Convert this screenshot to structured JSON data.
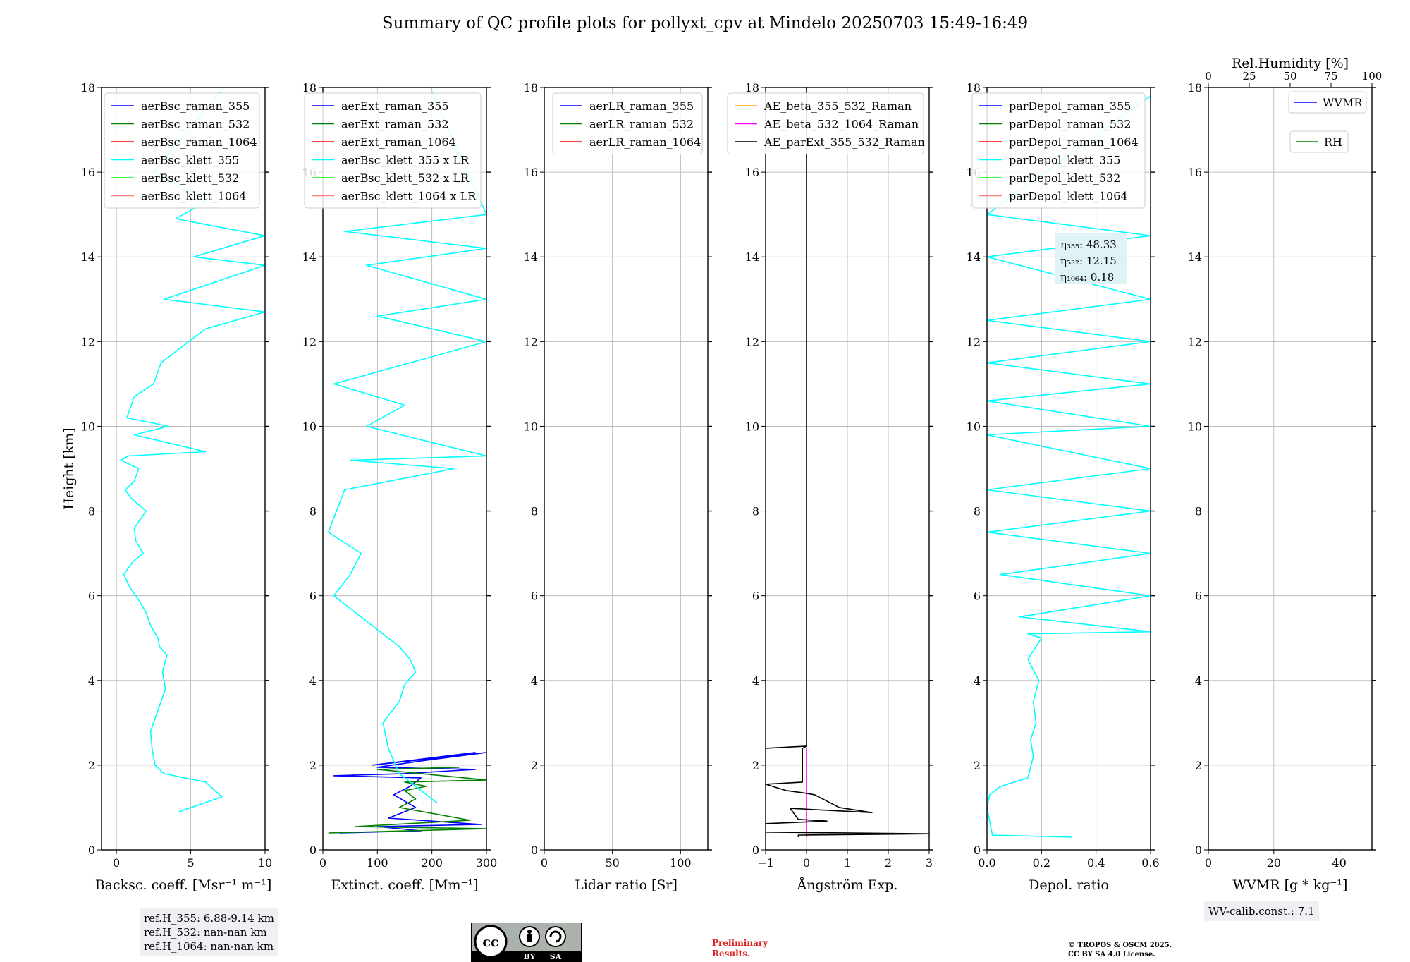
{
  "title": "Summary of QC profile plots for pollyxt_cpv at Mindelo 20250703 15:49-16:49",
  "height_axis_label": "Height [km]",
  "ref_heights": [
    "ref.H_355: 6.88-9.14 km",
    "ref.H_532: nan-nan km",
    "ref.H_1064: nan-nan km"
  ],
  "wv_calib": "WV-calib.const.: 7.1",
  "preliminary": [
    "Preliminary",
    "Results."
  ],
  "copyright": [
    "© TROPOS & OSCM 2025.",
    "CC BY SA 4.0 License."
  ],
  "license_badge": {
    "cc": "cc",
    "by": "BY",
    "sa": "SA"
  },
  "eta_labels": [
    {
      "label": "η₃₅₅: 48.33"
    },
    {
      "label": "η₅₃₂: 12.15"
    },
    {
      "label": "η₁₀₆₄: 0.18"
    }
  ],
  "rh_axis": {
    "label": "Rel.Humidity [%]",
    "ticks": [
      "0",
      "25",
      "50",
      "75",
      "100"
    ]
  },
  "chart_data": [
    {
      "type": "line",
      "xlabel": "Backsc. coeff. [Msr⁻¹ m⁻¹]",
      "ylabel": "Height [km]",
      "xlim": [
        -1,
        10
      ],
      "ylim": [
        0,
        18
      ],
      "xticks": [
        0,
        5,
        10
      ],
      "yticks": [
        0,
        2,
        4,
        6,
        8,
        10,
        12,
        14,
        16,
        18
      ],
      "grid": true,
      "legend": "top-right",
      "series": [
        {
          "name": "aerBsc_raman_355",
          "color": "#0000ff",
          "x": [],
          "y": []
        },
        {
          "name": "aerBsc_raman_532",
          "color": "#008000",
          "x": [],
          "y": []
        },
        {
          "name": "aerBsc_raman_1064",
          "color": "#ff0000",
          "x": [],
          "y": []
        },
        {
          "name": "aerBsc_klett_355",
          "color": "#00ffff",
          "x": [
            4.2,
            7.1,
            6.0,
            3.2,
            2.6,
            2.4,
            2.3,
            2.6,
            3.0,
            3.3,
            3.1,
            3.4,
            2.9,
            2.8,
            2.3,
            2.0,
            1.5,
            0.9,
            0.5,
            1.1,
            1.8,
            1.3,
            1.2,
            2.0,
            1.0,
            0.6,
            1.2,
            1.5,
            0.3,
            0.8,
            6.0,
            1.2,
            3.5,
            0.7,
            1.2,
            2.5,
            3.0,
            4.5,
            6.0,
            8.0,
            10.0,
            3.2,
            10.0,
            5.2,
            10.0,
            4.0,
            6.0,
            2.5,
            7.0
          ],
          "y": [
            0.9,
            1.25,
            1.6,
            1.8,
            2.0,
            2.4,
            2.8,
            3.1,
            3.5,
            3.8,
            4.2,
            4.6,
            4.8,
            5.0,
            5.3,
            5.6,
            5.9,
            6.2,
            6.5,
            6.8,
            7.0,
            7.3,
            7.6,
            8.0,
            8.3,
            8.5,
            8.7,
            9.0,
            9.2,
            9.3,
            9.4,
            9.8,
            10.0,
            10.2,
            10.7,
            11.0,
            11.5,
            11.9,
            12.3,
            12.5,
            12.7,
            13.0,
            13.8,
            14.0,
            14.5,
            14.9,
            15.3,
            16.0,
            17.9
          ]
        },
        {
          "name": "aerBsc_klett_532",
          "color": "#00ff00",
          "x": [],
          "y": []
        },
        {
          "name": "aerBsc_klett_1064",
          "color": "#ff7f7f",
          "x": [],
          "y": []
        }
      ]
    },
    {
      "type": "line",
      "xlabel": "Extinct. coeff. [Mm⁻¹]",
      "xlim": [
        0,
        300
      ],
      "ylim": [
        0,
        18
      ],
      "xticks": [
        0,
        100,
        200,
        300
      ],
      "yticks": [
        0,
        2,
        4,
        6,
        8,
        10,
        12,
        14,
        16,
        18
      ],
      "grid": true,
      "legend": "top-right",
      "series": [
        {
          "name": "aerExt_raman_355",
          "color": "#0000ff",
          "x": [
            30,
            180,
            100,
            290,
            120,
            170,
            130,
            160,
            180,
            20,
            150,
            280,
            100,
            180,
            300,
            90,
            280
          ],
          "y": [
            0.4,
            0.45,
            0.55,
            0.6,
            0.75,
            1.0,
            1.3,
            1.5,
            1.7,
            1.75,
            1.8,
            1.9,
            1.95,
            2.1,
            2.3,
            2.0,
            2.3
          ]
        },
        {
          "name": "aerExt_raman_532",
          "color": "#008000",
          "x": [
            10,
            300,
            60,
            270,
            140,
            170,
            150,
            190,
            150,
            300,
            100,
            250
          ],
          "y": [
            0.4,
            0.5,
            0.55,
            0.7,
            1.0,
            1.2,
            1.4,
            1.5,
            1.6,
            1.65,
            1.9,
            1.95
          ]
        },
        {
          "name": "aerExt_raman_1064",
          "color": "#ff0000",
          "x": [],
          "y": []
        },
        {
          "name": "aerBsc_klett_355 x LR",
          "color": "#00ffff",
          "x": [
            210,
            160,
            140,
            120,
            110,
            140,
            150,
            170,
            160,
            140,
            100,
            60,
            20,
            50,
            70,
            10,
            40,
            240,
            50,
            300,
            80,
            150,
            20,
            300,
            100,
            300,
            80,
            300,
            40,
            300,
            200
          ],
          "y": [
            1.1,
            1.6,
            1.8,
            2.4,
            3.0,
            3.5,
            3.9,
            4.2,
            4.5,
            4.8,
            5.2,
            5.6,
            6.0,
            6.5,
            7.0,
            7.5,
            8.5,
            9.0,
            9.2,
            9.3,
            10.0,
            10.5,
            11.0,
            12.0,
            12.6,
            13.0,
            13.8,
            14.2,
            14.6,
            15.0,
            17.9
          ]
        },
        {
          "name": "aerBsc_klett_532 x LR",
          "color": "#00ff00",
          "x": [],
          "y": []
        },
        {
          "name": "aerBsc_klett_1064 x LR",
          "color": "#ff7f7f",
          "x": [],
          "y": []
        }
      ]
    },
    {
      "type": "line",
      "xlabel": "Lidar ratio [Sr]",
      "xlim": [
        0,
        120
      ],
      "ylim": [
        0,
        18
      ],
      "xticks": [
        0,
        50,
        100
      ],
      "yticks": [
        0,
        2,
        4,
        6,
        8,
        10,
        12,
        14,
        16,
        18
      ],
      "grid": true,
      "legend": "top-right",
      "series": [
        {
          "name": "aerLR_raman_355",
          "color": "#0000ff",
          "x": [],
          "y": []
        },
        {
          "name": "aerLR_raman_532",
          "color": "#008000",
          "x": [],
          "y": []
        },
        {
          "name": "aerLR_raman_1064",
          "color": "#ff0000",
          "x": [],
          "y": []
        }
      ]
    },
    {
      "type": "line",
      "xlabel": "Ångström Exp.",
      "xlim": [
        -1,
        3
      ],
      "ylim": [
        0,
        18
      ],
      "xticks": [
        -1,
        0,
        1,
        2,
        3
      ],
      "xticklabels": [
        "−1",
        "0",
        "1",
        "2",
        "3"
      ],
      "yticks": [
        0,
        2,
        4,
        6,
        8,
        10,
        12,
        14,
        16,
        18
      ],
      "grid": true,
      "legend": "top-right",
      "series": [
        {
          "name": "AE_beta_355_532_Raman",
          "color": "#ffa500",
          "x": [],
          "y": []
        },
        {
          "name": "AE_beta_532_1064_Raman",
          "color": "#ff00ff",
          "x": [
            0,
            0
          ],
          "y": [
            0.3,
            2.4
          ]
        },
        {
          "name": "AE_parExt_355_532_Raman",
          "color": "#000000",
          "x": [
            -0.2,
            -0.2,
            3.0,
            -1.0,
            -1.0,
            0.5,
            -0.2,
            -0.4,
            1.6,
            0.8,
            0.4,
            0.2,
            -0.1,
            -0.5,
            -1.0,
            -0.1,
            -0.1,
            0.0,
            -1.0,
            0.0,
            0.0
          ],
          "y": [
            0.3,
            0.35,
            0.38,
            0.42,
            0.62,
            0.68,
            0.72,
            0.98,
            0.88,
            1.0,
            1.2,
            1.3,
            1.35,
            1.4,
            1.55,
            1.6,
            2.4,
            2.45,
            2.4,
            2.45,
            18.0
          ]
        }
      ]
    },
    {
      "type": "line",
      "xlabel": "Depol. ratio",
      "xlim": [
        0.0,
        0.6
      ],
      "ylim": [
        0,
        18
      ],
      "xticks": [
        0.0,
        0.2,
        0.4,
        0.6
      ],
      "xticklabels": [
        "0.0",
        "0.2",
        "0.4",
        "0.6"
      ],
      "yticks": [
        0,
        2,
        4,
        6,
        8,
        10,
        12,
        14,
        16,
        18
      ],
      "grid": true,
      "legend": "top-right",
      "series": [
        {
          "name": "parDepol_raman_355",
          "color": "#0000ff",
          "x": [],
          "y": []
        },
        {
          "name": "parDepol_raman_532",
          "color": "#008000",
          "x": [],
          "y": []
        },
        {
          "name": "parDepol_raman_1064",
          "color": "#ff0000",
          "x": [],
          "y": []
        },
        {
          "name": "parDepol_klett_355",
          "color": "#00ffff",
          "x": [
            0.31,
            0.02,
            0.0,
            0.01,
            0.05,
            0.15,
            0.17,
            0.16,
            0.18,
            0.17,
            0.19,
            0.15,
            0.2,
            0.15,
            0.6,
            0.12,
            0.6,
            0.05,
            0.6,
            0.0,
            0.6,
            0.0,
            0.6,
            0.0,
            0.6,
            0.0,
            0.6,
            0.0,
            0.6,
            0.0,
            0.6,
            0.0,
            0.6,
            0.0,
            0.6
          ],
          "y": [
            0.3,
            0.35,
            1.0,
            1.3,
            1.5,
            1.7,
            2.2,
            2.6,
            3.0,
            3.5,
            4.0,
            4.5,
            5.0,
            5.1,
            5.15,
            5.5,
            6.0,
            6.5,
            7.0,
            7.5,
            8.0,
            8.5,
            9.0,
            9.8,
            10.0,
            10.6,
            11.0,
            11.5,
            12.0,
            12.5,
            13.0,
            14.0,
            14.5,
            15.0,
            17.8
          ]
        },
        {
          "name": "parDepol_klett_532",
          "color": "#00ff00",
          "x": [],
          "y": []
        },
        {
          "name": "parDepol_klett_1064",
          "color": "#ff7f7f",
          "x": [],
          "y": []
        }
      ]
    },
    {
      "type": "line",
      "xlabel": "WVMR [g * kg⁻¹]",
      "xlim": [
        0,
        50
      ],
      "ylim": [
        0,
        18
      ],
      "xticks": [
        0,
        20,
        40
      ],
      "yticks": [
        0,
        2,
        4,
        6,
        8,
        10,
        12,
        14,
        16,
        18
      ],
      "grid": true,
      "legend": "top-right",
      "series": [
        {
          "name": "WVMR",
          "color": "#0000ff",
          "x": [],
          "y": []
        },
        {
          "name": "RH",
          "color": "#008000",
          "x": [],
          "y": []
        }
      ]
    }
  ]
}
